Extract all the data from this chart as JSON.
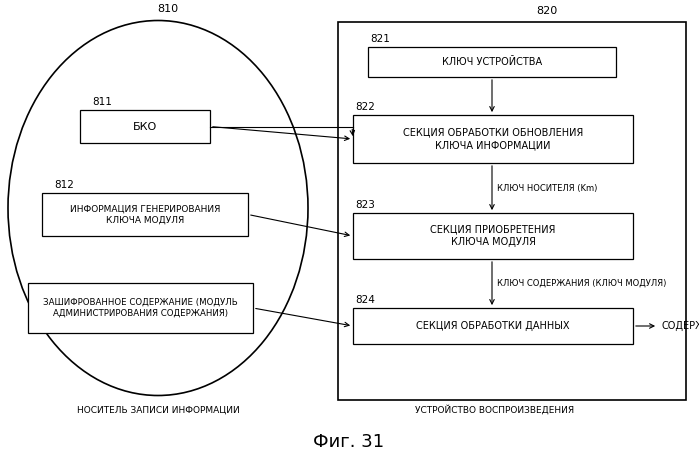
{
  "title": "Фиг. 31",
  "bg_color": "#ffffff",
  "label_810": "810",
  "label_811": "811",
  "label_812": "812",
  "label_820": "820",
  "label_821": "821",
  "label_822": "822",
  "label_823": "823",
  "label_824": "824",
  "box_bko": "БКО",
  "box_812": "ИНФОРМАЦИЯ ГЕНЕРИРОВАНИЯ\nКЛЮЧА МОДУЛЯ",
  "box_encrypted": "ЗАШИФРОВАННОЕ СОДЕРЖАНИЕ (МОДУЛЬ\nАДМИНИСТРИРОВАНИЯ СОДЕРЖАНИЯ)",
  "box_821": "КЛЮЧ УСТРОЙСТВА",
  "box_822": "СЕКЦИЯ ОБРАБОТКИ ОБНОВЛЕНИЯ\nКЛЮЧА ИНФОРМАЦИИ",
  "box_823": "СЕКЦИЯ ПРИОБРЕТЕНИЯ\nКЛЮЧА МОДУЛЯ",
  "box_824": "СЕКЦИЯ ОБРАБОТКИ ДАННЫХ",
  "label_km": "КЛЮЧ НОСИТЕЛЯ (Km)",
  "label_kc": "КЛЮЧ СОДЕРЖАНИЯ (КЛЮЧ МОДУЛЯ)",
  "label_content": "СОДЕРЖАНИЕ",
  "label_nositel": "НОСИТЕЛЬ ЗАПИСИ ИНФОРМАЦИИ",
  "label_ustroistvo": "УСТРОЙСТВО ВОСПРОИЗВЕДЕНИЯ"
}
